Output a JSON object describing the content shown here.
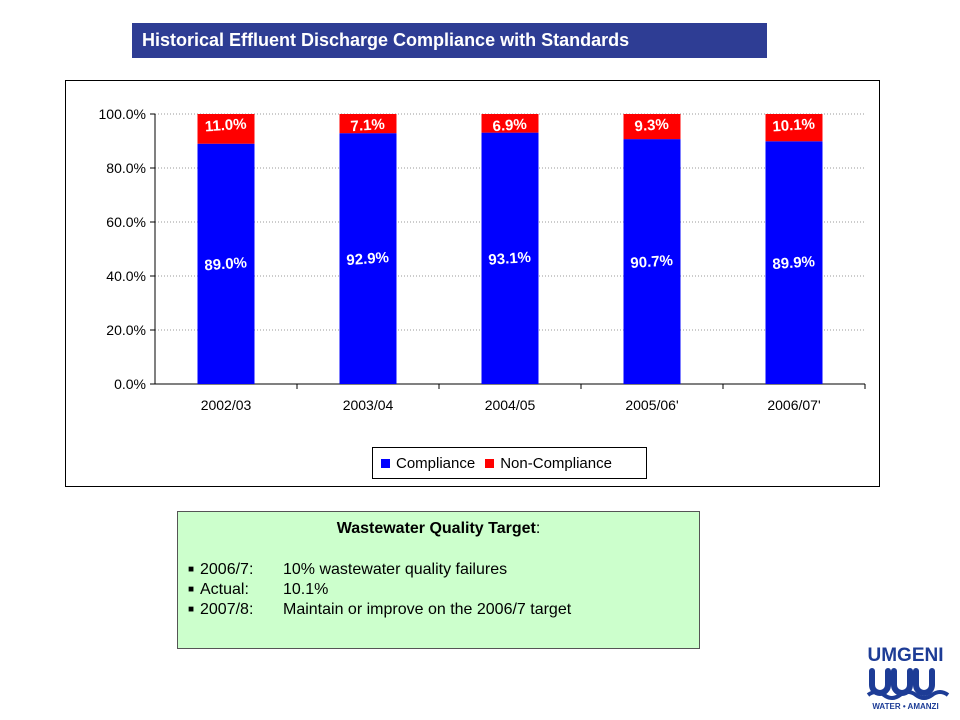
{
  "title": "Historical Effluent Discharge Compliance with Standards",
  "chart_data": {
    "type": "bar",
    "stacked": true,
    "categories": [
      "2002/03",
      "2003/04",
      "2004/05",
      "2005/06'",
      "2006/07'"
    ],
    "series": [
      {
        "name": "Compliance",
        "color": "#0000ff",
        "values": [
          89.0,
          92.9,
          93.1,
          90.7,
          89.9
        ],
        "labels": [
          "89.0%",
          "92.9%",
          "93.1%",
          "90.7%",
          "89.9%"
        ]
      },
      {
        "name": "Non-Compliance",
        "color": "#ff0000",
        "values": [
          11.0,
          7.1,
          6.9,
          9.3,
          10.1
        ],
        "labels": [
          "11.0%",
          "7.1%",
          "6.9%",
          "9.3%",
          "10.1%"
        ]
      }
    ],
    "ylim": [
      0,
      100
    ],
    "yticks": [
      "0.0%",
      "20.0%",
      "40.0%",
      "60.0%",
      "80.0%",
      "100.0%"
    ],
    "grid": true,
    "legend_position": "bottom"
  },
  "target": {
    "heading": "Wastewater Quality Target",
    "heading_suffix": ":",
    "items": [
      {
        "key": "2006/7:",
        "value": "10% wastewater quality failures"
      },
      {
        "key": "Actual:",
        "value": "10.1%"
      },
      {
        "key": "2007/8:",
        "value": "Maintain or improve on the 2006/7 target"
      }
    ]
  },
  "logo": {
    "name": "UMGENI",
    "subtitle": "WATER • AMANZI"
  }
}
